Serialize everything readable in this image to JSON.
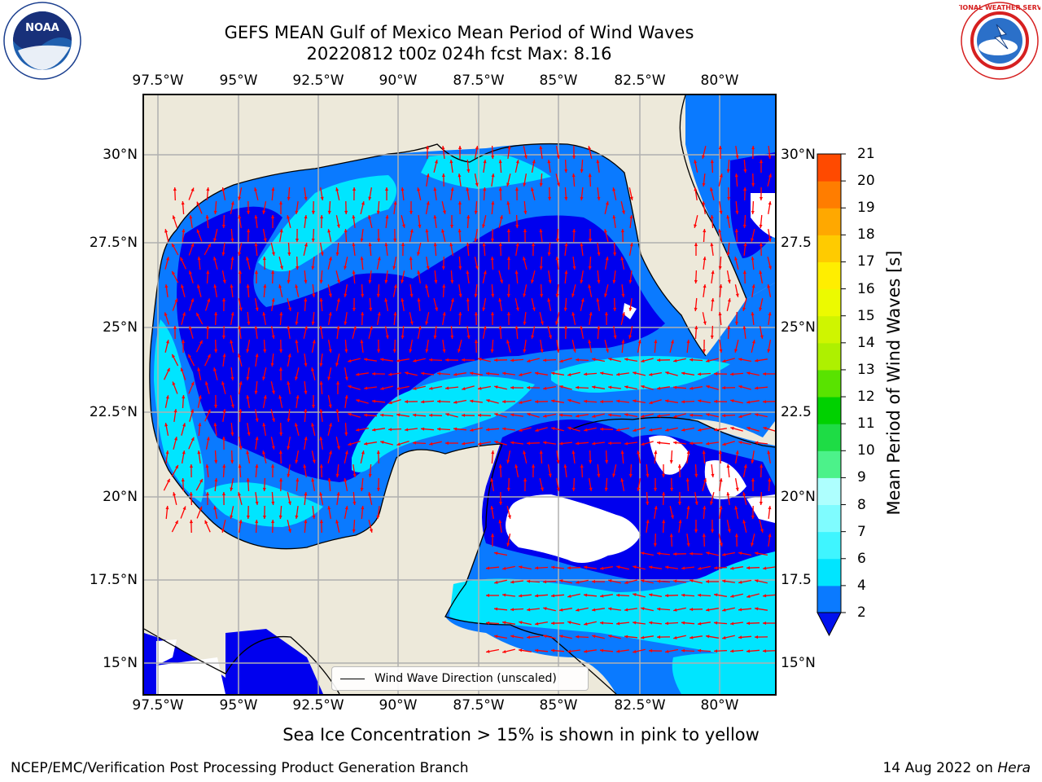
{
  "title": {
    "line1": "GEFS MEAN Gulf of Mexico Mean Period of Wind Waves",
    "line2": "20220812 t00z 024h fcst   Max: 8.16"
  },
  "logos": {
    "left": {
      "name": "noaa-logo",
      "text": "NOAA",
      "ring_text": "NATIONAL OCEANIC AND ATMOSPHERIC ADMINISTRATION · U.S. DEPARTMENT OF COMMERCE"
    },
    "right": {
      "name": "nws-logo",
      "ring_text": "NATIONAL WEATHER SERVICE"
    }
  },
  "map": {
    "lon_range": [
      -98,
      -78.2
    ],
    "lat_range": [
      14.1,
      31.8
    ],
    "x_ticks": [
      "97.5°W",
      "95°W",
      "92.5°W",
      "90°W",
      "87.5°W",
      "85°W",
      "82.5°W",
      "80°W"
    ],
    "y_ticks": [
      "15°N",
      "17.5°N",
      "20°N",
      "22.5°N",
      "25°N",
      "27.5°N",
      "30°N"
    ],
    "y_ticks_right": [
      "15°N",
      "17.5",
      "20°N",
      "22.5",
      "25°N",
      "27.5",
      "30°N"
    ],
    "land_color": "#ede9da",
    "grid": true,
    "legend_label": "Wind Wave Direction (unscaled)",
    "arrow_color": "#ff0000"
  },
  "colorbar": {
    "label": "Mean Period of Wind Waves [s]",
    "ticks": [
      "2",
      "4",
      "6",
      "7",
      "8",
      "9",
      "10",
      "11",
      "12",
      "13",
      "14",
      "15",
      "16",
      "17",
      "18",
      "19",
      "20",
      "21"
    ],
    "colors": [
      "#0a7aff",
      "#00e5ff",
      "#3ff5ff",
      "#7ffcff",
      "#aefffe",
      "#4cf28a",
      "#1edc45",
      "#00d100",
      "#59e300",
      "#aef000",
      "#cff500",
      "#ecfa00",
      "#ffee00",
      "#ffcb00",
      "#ffa800",
      "#ff7d00",
      "#ff4a00",
      "#ff1a00"
    ],
    "under_color": "#0011ee"
  },
  "notes": {
    "ice": "Sea Ice Concentration > 15% is shown in pink to yellow"
  },
  "footer": {
    "left": "NCEP/EMC/Verification Post Processing Product Generation Branch",
    "right_date": "14 Aug 2022 on ",
    "right_machine": "Hera"
  }
}
